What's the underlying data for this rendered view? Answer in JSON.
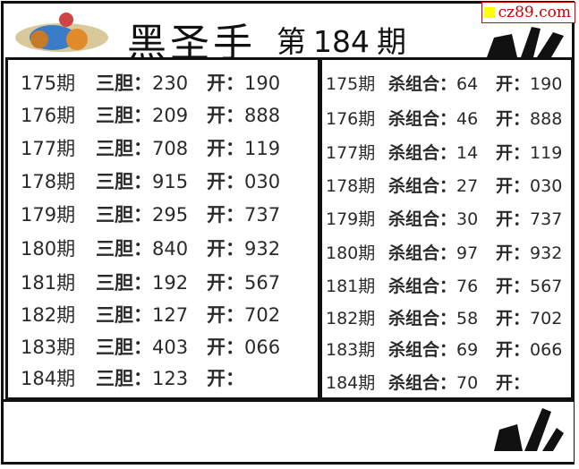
{
  "header": {
    "title": "黑圣手",
    "issue_prefix": "第",
    "issue_number": "184",
    "issue_suffix": "期",
    "watermark": "cz89.com"
  },
  "left_table": {
    "key_label": "三胆：",
    "open_label": "开：",
    "rows": [
      {
        "period": "175期",
        "value": "230",
        "open": "190"
      },
      {
        "period": "176期",
        "value": "209",
        "open": "888"
      },
      {
        "period": "177期",
        "value": "708",
        "open": "119"
      },
      {
        "period": "178期",
        "value": "915",
        "open": "030"
      },
      {
        "period": "179期",
        "value": "295",
        "open": "737"
      },
      {
        "period": "180期",
        "value": "840",
        "open": "932"
      },
      {
        "period": "181期",
        "value": "192",
        "open": "567"
      },
      {
        "period": "182期",
        "value": "127",
        "open": "702"
      },
      {
        "period": "183期",
        "value": "403",
        "open": "066"
      },
      {
        "period": "184期",
        "value": "123",
        "open": ""
      }
    ]
  },
  "right_table": {
    "key_label": "杀组合：",
    "open_label": "开：",
    "rows": [
      {
        "period": "175期",
        "value": "64",
        "open": "190"
      },
      {
        "period": "176期",
        "value": "46",
        "open": "888"
      },
      {
        "period": "177期",
        "value": "14",
        "open": "119"
      },
      {
        "period": "178期",
        "value": "27",
        "open": "030"
      },
      {
        "period": "179期",
        "value": "30",
        "open": "737"
      },
      {
        "period": "180期",
        "value": "97",
        "open": "932"
      },
      {
        "period": "181期",
        "value": "76",
        "open": "567"
      },
      {
        "period": "182期",
        "value": "58",
        "open": "702"
      },
      {
        "period": "183期",
        "value": "69",
        "open": "066"
      },
      {
        "period": "184期",
        "value": "70",
        "open": ""
      }
    ]
  },
  "colors": {
    "border": "#111111",
    "watermark": "#cc0000",
    "watermark_square": "#ffff00"
  },
  "icons": {
    "header_logo": "cartoon-figure-icon",
    "hand_logo": "ok-hand-icon"
  }
}
